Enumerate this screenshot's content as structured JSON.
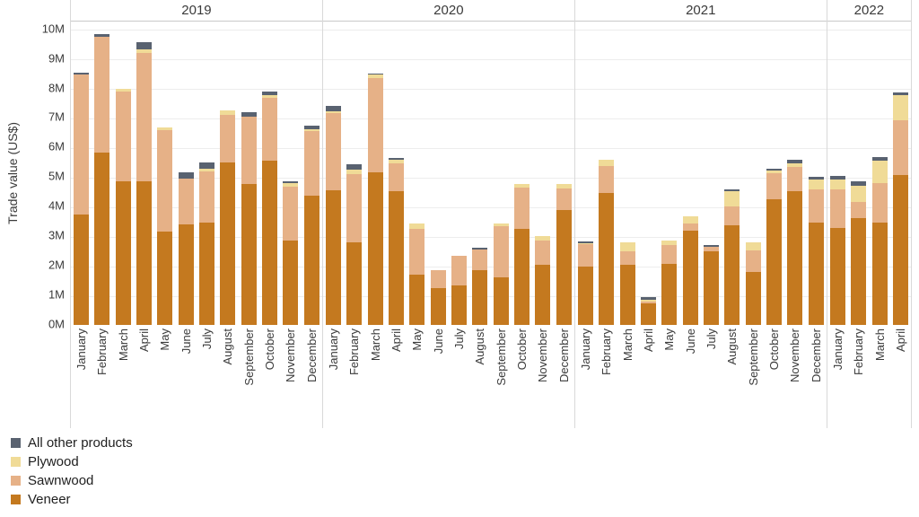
{
  "y_axis": {
    "title": "Trade value (US$)",
    "tick_labels": [
      "0M",
      "1M",
      "2M",
      "3M",
      "4M",
      "5M",
      "6M",
      "7M",
      "8M",
      "9M",
      "10M"
    ]
  },
  "legend": {
    "items": [
      {
        "label": "All other products",
        "color": "#596270"
      },
      {
        "label": "Plywood",
        "color": "#f0db97"
      },
      {
        "label": "Sawnwood",
        "color": "#e6b187"
      },
      {
        "label": "Veneer",
        "color": "#c4791f"
      }
    ]
  },
  "chart_data": {
    "type": "bar",
    "stacked": true,
    "title": "",
    "ylabel": "Trade value (US$)",
    "unit": "million US$",
    "ylim": [
      0,
      10
    ],
    "ytick_labels": [
      "0M",
      "1M",
      "2M",
      "3M",
      "4M",
      "5M",
      "6M",
      "7M",
      "8M",
      "9M",
      "10M"
    ],
    "grid": true,
    "legend_position": "bottom-left",
    "groups": [
      {
        "year": "2019",
        "months": [
          "January",
          "February",
          "March",
          "April",
          "May",
          "June",
          "July",
          "August",
          "September",
          "October",
          "November",
          "December"
        ]
      },
      {
        "year": "2020",
        "months": [
          "January",
          "February",
          "March",
          "April",
          "May",
          "June",
          "July",
          "August",
          "September",
          "October",
          "November",
          "December"
        ]
      },
      {
        "year": "2021",
        "months": [
          "January",
          "February",
          "March",
          "April",
          "May",
          "June",
          "July",
          "August",
          "September",
          "October",
          "November",
          "December"
        ]
      },
      {
        "year": "2022",
        "months": [
          "January",
          "February",
          "March",
          "April"
        ]
      }
    ],
    "series": [
      {
        "name": "Veneer",
        "color": "#c4791f",
        "values": [
          3.73,
          5.83,
          4.85,
          4.86,
          3.16,
          3.39,
          3.46,
          5.5,
          4.76,
          5.57,
          2.87,
          4.36,
          4.56,
          2.79,
          5.15,
          4.54,
          1.69,
          1.25,
          1.34,
          1.84,
          1.6,
          3.24,
          2.05,
          3.9,
          1.98,
          4.48,
          2.03,
          0.72,
          2.07,
          3.19,
          2.48,
          3.36,
          1.79,
          4.25,
          4.54,
          3.46,
          3.29,
          3.62,
          3.46,
          5.06
        ]
      },
      {
        "name": "Sawnwood",
        "color": "#e6b187",
        "values": [
          4.75,
          3.92,
          3.05,
          4.34,
          3.42,
          1.57,
          1.73,
          1.61,
          2.28,
          2.12,
          1.81,
          2.19,
          2.6,
          2.31,
          3.19,
          0.93,
          1.55,
          0.6,
          0.99,
          0.71,
          1.75,
          1.42,
          0.81,
          0.73,
          0.75,
          0.91,
          0.46,
          0.08,
          0.62,
          0.25,
          0.15,
          0.64,
          0.74,
          0.88,
          0.81,
          1.14,
          1.31,
          0.53,
          1.35,
          1.88
        ]
      },
      {
        "name": "Plywood",
        "color": "#f0db97",
        "values": [
          0,
          0,
          0.1,
          0.12,
          0.11,
          0,
          0.1,
          0.14,
          0,
          0.09,
          0.13,
          0.06,
          0.08,
          0.14,
          0.12,
          0.12,
          0.2,
          0,
          0,
          0,
          0.09,
          0.12,
          0.15,
          0.15,
          0.04,
          0.2,
          0.3,
          0.05,
          0.18,
          0.23,
          0,
          0.53,
          0.26,
          0.08,
          0.12,
          0.33,
          0.31,
          0.56,
          0.74,
          0.84
        ]
      },
      {
        "name": "All other products",
        "color": "#596270",
        "values": [
          0.06,
          0.08,
          0,
          0.25,
          0,
          0.2,
          0.21,
          0,
          0.15,
          0.12,
          0.05,
          0.13,
          0.16,
          0.2,
          0.04,
          0.06,
          0,
          0,
          0,
          0.05,
          0,
          0,
          0,
          0,
          0.07,
          0,
          0,
          0.09,
          0,
          0,
          0.07,
          0.07,
          0,
          0.08,
          0.12,
          0.08,
          0.13,
          0.15,
          0.14,
          0.1
        ]
      }
    ]
  }
}
